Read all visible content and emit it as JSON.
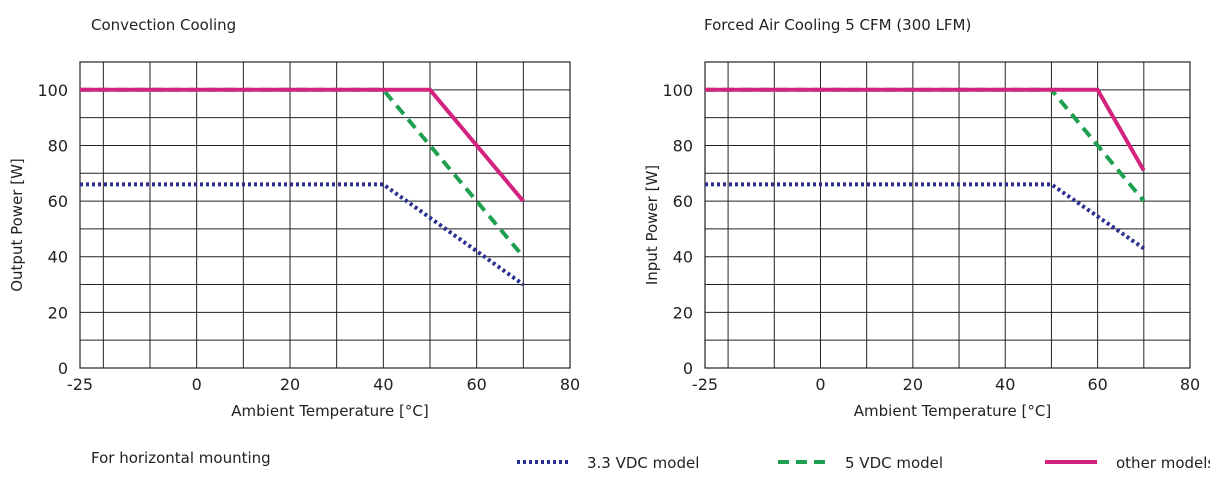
{
  "chart_data": [
    {
      "type": "line",
      "title": "Convection Cooling",
      "xlabel": "Ambient Temperature [°C]",
      "ylabel": "Output Power [W]",
      "xlim": [
        -25,
        80
      ],
      "ylim": [
        0,
        110
      ],
      "x_ticks": [
        "-25",
        "0",
        "20",
        "40",
        "60",
        "80"
      ],
      "y_ticks": [
        "0",
        "20",
        "40",
        "60",
        "80",
        "100"
      ],
      "grid": true,
      "series": [
        {
          "name": "3.3 VDC model",
          "color": "#2b2f8f",
          "style": "dotted",
          "points": [
            [
              -25,
              66
            ],
            [
              40,
              66
            ],
            [
              70,
              30
            ]
          ]
        },
        {
          "name": "5 VDC model",
          "color": "#1fa050",
          "style": "dashed",
          "points": [
            [
              -25,
              100
            ],
            [
              40,
              100
            ],
            [
              70,
              40
            ]
          ]
        },
        {
          "name": "other models",
          "color": "#d4237f",
          "style": "solid",
          "points": [
            [
              -25,
              100
            ],
            [
              50,
              100
            ],
            [
              70,
              60
            ]
          ]
        }
      ]
    },
    {
      "type": "line",
      "title": "Forced Air Cooling 5 CFM (300 LFM)",
      "xlabel": "Ambient Temperature [°C]",
      "ylabel": "Input Power [W]",
      "xlim": [
        -25,
        80
      ],
      "ylim": [
        0,
        110
      ],
      "x_ticks": [
        "-25",
        "0",
        "20",
        "40",
        "60",
        "80"
      ],
      "y_ticks": [
        "0",
        "20",
        "40",
        "60",
        "80",
        "100"
      ],
      "grid": true,
      "series": [
        {
          "name": "3.3 VDC model",
          "color": "#2b2f8f",
          "style": "dotted",
          "points": [
            [
              -25,
              66
            ],
            [
              50,
              66
            ],
            [
              70,
              43
            ]
          ]
        },
        {
          "name": "5 VDC model",
          "color": "#1fa050",
          "style": "dashed",
          "points": [
            [
              -25,
              100
            ],
            [
              50,
              100
            ],
            [
              70,
              60
            ]
          ]
        },
        {
          "name": "other models",
          "color": "#d4237f",
          "style": "solid",
          "points": [
            [
              -25,
              100
            ],
            [
              60,
              100
            ],
            [
              70,
              71
            ]
          ]
        }
      ]
    }
  ],
  "footnote": "For horizontal mounting",
  "legend": [
    {
      "label": "3.3 VDC model",
      "color": "#2b2f8f",
      "style": "dotted"
    },
    {
      "label": "5 VDC model",
      "color": "#1fa050",
      "style": "dashed"
    },
    {
      "label": "other models",
      "color": "#d4237f",
      "style": "solid"
    }
  ]
}
